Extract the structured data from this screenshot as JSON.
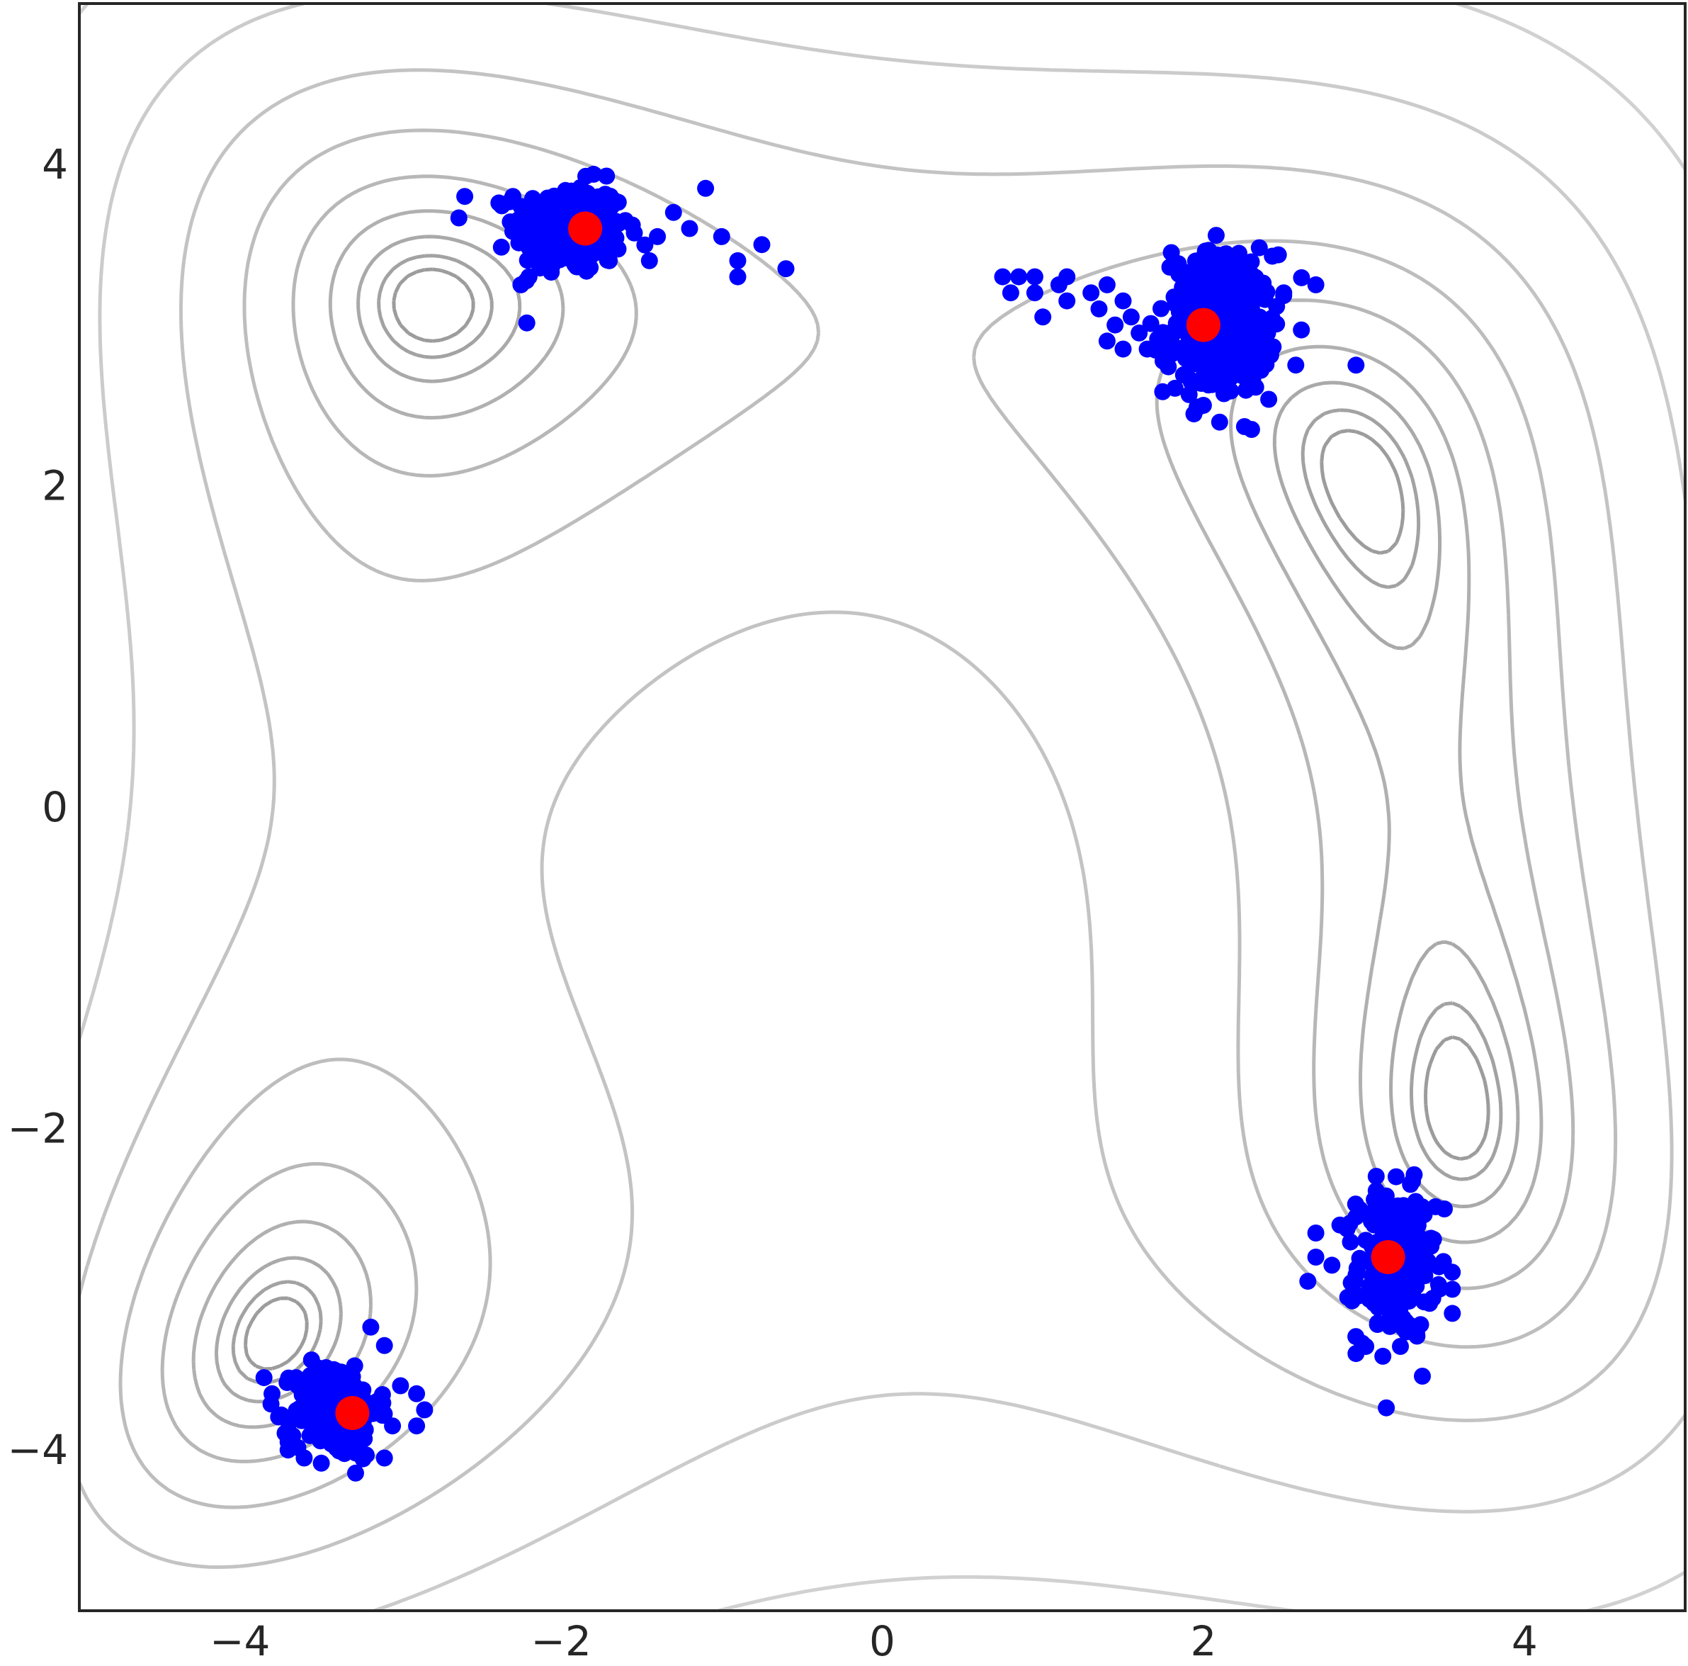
{
  "chart_data": {
    "type": "scatter",
    "title": "",
    "xlabel": "",
    "ylabel": "",
    "xlim": [
      -5,
      5
    ],
    "ylim": [
      -5,
      5
    ],
    "x_ticks": [
      -4,
      -2,
      0,
      2,
      4
    ],
    "y_ticks": [
      -4,
      -2,
      0,
      2,
      4
    ],
    "x_tick_labels": [
      "−4",
      "−2",
      "0",
      "2",
      "4"
    ],
    "y_tick_labels": [
      "−4",
      "−2",
      "0",
      "2",
      "4"
    ],
    "grid": false,
    "background_contours": {
      "function": "Himmelblau",
      "levels": [
        2,
        4,
        8,
        16,
        32,
        64,
        128,
        256,
        512
      ],
      "color": "#808080"
    },
    "series": [
      {
        "role": "samples",
        "color": "#0000ff",
        "clusters": [
          {
            "center": [
              -1.95,
              3.6
            ],
            "main_count": 280,
            "main_spread": [
              0.17,
              0.14
            ],
            "extra_points": [
              [
                -1.6,
                3.65
              ],
              [
                -1.4,
                3.55
              ],
              [
                -1.2,
                3.6
              ],
              [
                -1.0,
                3.55
              ],
              [
                -0.9,
                3.4
              ],
              [
                -0.75,
                3.5
              ],
              [
                -0.6,
                3.35
              ],
              [
                -1.1,
                3.85
              ],
              [
                -2.6,
                3.8
              ],
              [
                -1.3,
                3.7
              ],
              [
                -1.45,
                3.4
              ],
              [
                -0.9,
                3.3
              ],
              [
                -1.7,
                3.4
              ],
              [
                -2.25,
                3.25
              ],
              [
                -2.2,
                3.3
              ],
              [
                -2.3,
                3.8
              ]
            ]
          },
          {
            "center": [
              2.1,
              3.0
            ],
            "main_count": 320,
            "main_spread": [
              0.17,
              0.22
            ],
            "extra_points": [
              [
                0.75,
                3.3
              ],
              [
                0.85,
                3.3
              ],
              [
                0.95,
                3.3
              ],
              [
                0.8,
                3.2
              ],
              [
                0.95,
                3.2
              ],
              [
                1.1,
                3.25
              ],
              [
                1.15,
                3.3
              ],
              [
                1.15,
                3.15
              ],
              [
                1.0,
                3.05
              ],
              [
                1.3,
                3.2
              ],
              [
                1.4,
                3.25
              ],
              [
                1.5,
                3.15
              ],
              [
                1.35,
                3.1
              ],
              [
                1.45,
                3.0
              ],
              [
                1.55,
                3.05
              ],
              [
                1.6,
                2.95
              ],
              [
                1.65,
                2.85
              ],
              [
                1.4,
                2.9
              ],
              [
                1.5,
                2.85
              ],
              [
                2.5,
                3.2
              ],
              [
                2.7,
                3.25
              ],
              [
                2.95,
                2.75
              ],
              [
                2.3,
                2.35
              ],
              [
                2.0,
                2.5
              ],
              [
                1.75,
                2.85
              ],
              [
                1.8,
                3.45
              ]
            ]
          },
          {
            "center": [
              3.2,
              -2.85
            ],
            "main_count": 240,
            "main_spread": [
              0.12,
              0.23
            ],
            "extra_points": [
              [
                2.85,
                -2.6
              ],
              [
                2.95,
                -2.55
              ],
              [
                2.7,
                -2.65
              ],
              [
                2.7,
                -2.8
              ],
              [
                2.8,
                -2.85
              ],
              [
                2.65,
                -2.95
              ],
              [
                3.55,
                -3.15
              ],
              [
                3.55,
                -3.0
              ],
              [
                2.95,
                -3.4
              ],
              [
                3.5,
                -2.5
              ],
              [
                3.2,
                -2.3
              ]
            ]
          },
          {
            "center": [
              -3.4,
              -3.75
            ],
            "main_count": 200,
            "main_spread": [
              0.13,
              0.15
            ],
            "extra_points": [
              [
                -3.85,
                -3.55
              ],
              [
                -3.8,
                -3.65
              ],
              [
                -3.65,
                -3.55
              ],
              [
                -3.7,
                -3.95
              ],
              [
                -3.7,
                -4.0
              ],
              [
                -3.6,
                -4.05
              ],
              [
                -3.1,
                -3.35
              ],
              [
                -3.0,
                -3.6
              ],
              [
                -2.9,
                -3.65
              ],
              [
                -2.85,
                -3.75
              ],
              [
                -2.9,
                -3.85
              ],
              [
                -3.05,
                -3.85
              ],
              [
                -3.1,
                -4.05
              ],
              [
                -3.25,
                -3.95
              ],
              [
                -3.15,
                -3.7
              ]
            ]
          }
        ]
      },
      {
        "role": "minima",
        "color": "#ff0000",
        "points": [
          [
            -1.85,
            3.6
          ],
          [
            2.0,
            3.0
          ],
          [
            3.15,
            -2.8
          ],
          [
            -3.3,
            -3.77
          ]
        ]
      }
    ]
  }
}
